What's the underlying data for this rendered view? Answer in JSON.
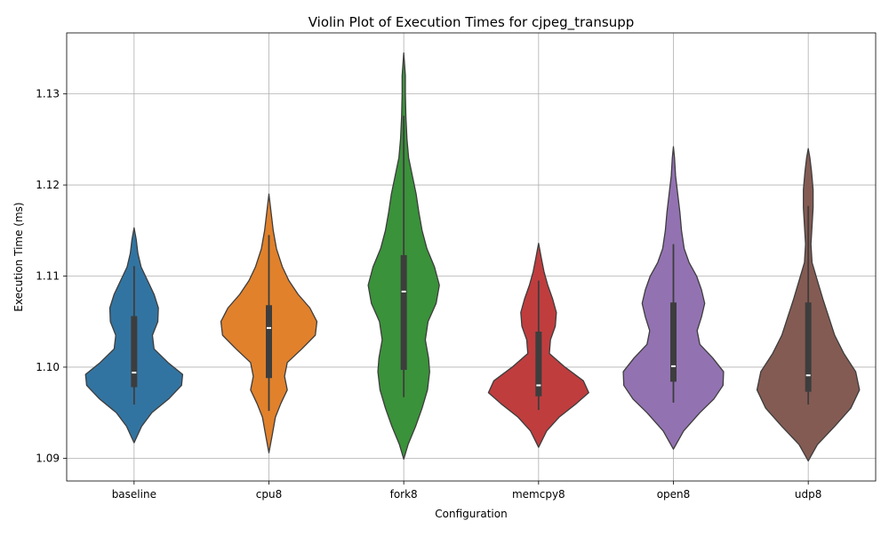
{
  "chart_data": {
    "type": "violin",
    "title": "Violin Plot of Execution Times for cjpeg_transupp",
    "xlabel": "Configuration",
    "ylabel": "Execution Time (ms)",
    "categories": [
      "baseline",
      "cpu8",
      "fork8",
      "memcpy8",
      "open8",
      "udp8"
    ],
    "ylim": [
      1.0875,
      1.1367
    ],
    "yticks": [
      "1.09",
      "1.10",
      "1.11",
      "1.12",
      "1.13"
    ],
    "ytick_values": [
      1.09,
      1.1,
      1.11,
      1.12,
      1.13
    ],
    "grid": true,
    "colors": [
      "#3274a1",
      "#e1812c",
      "#3a923a",
      "#c03d3e",
      "#9372b2",
      "#845b53"
    ],
    "series": [
      {
        "category": "baseline",
        "min": 1.0917,
        "max": 1.1153,
        "whisker_low": 1.0959,
        "q1": 1.0978,
        "median": 1.0994,
        "q3": 1.1056,
        "whisker_high": 1.1111,
        "density": [
          [
            1.0917,
            0.0
          ],
          [
            1.0935,
            0.14
          ],
          [
            1.095,
            0.33
          ],
          [
            1.0965,
            0.64
          ],
          [
            1.098,
            0.88
          ],
          [
            1.0992,
            0.9
          ],
          [
            1.1005,
            0.63
          ],
          [
            1.102,
            0.37
          ],
          [
            1.1035,
            0.34
          ],
          [
            1.105,
            0.44
          ],
          [
            1.1065,
            0.45
          ],
          [
            1.108,
            0.37
          ],
          [
            1.1095,
            0.25
          ],
          [
            1.111,
            0.13
          ],
          [
            1.1125,
            0.07
          ],
          [
            1.114,
            0.04
          ],
          [
            1.1153,
            0.0
          ]
        ]
      },
      {
        "category": "cpu8",
        "min": 1.0906,
        "max": 1.119,
        "whisker_low": 1.0952,
        "q1": 1.0988,
        "median": 1.1043,
        "q3": 1.1068,
        "whisker_high": 1.1145,
        "density": [
          [
            1.0906,
            0.0
          ],
          [
            1.0925,
            0.06
          ],
          [
            1.0945,
            0.12
          ],
          [
            1.096,
            0.22
          ],
          [
            1.0975,
            0.34
          ],
          [
            1.099,
            0.29
          ],
          [
            1.1005,
            0.34
          ],
          [
            1.102,
            0.61
          ],
          [
            1.1035,
            0.86
          ],
          [
            1.105,
            0.89
          ],
          [
            1.1065,
            0.76
          ],
          [
            1.108,
            0.54
          ],
          [
            1.1095,
            0.37
          ],
          [
            1.111,
            0.25
          ],
          [
            1.113,
            0.14
          ],
          [
            1.115,
            0.08
          ],
          [
            1.117,
            0.04
          ],
          [
            1.119,
            0.0
          ]
        ]
      },
      {
        "category": "fork8",
        "min": 1.0899,
        "max": 1.1345,
        "whisker_low": 1.0967,
        "q1": 1.0997,
        "median": 1.1083,
        "q3": 1.1123,
        "whisker_high": 1.1276,
        "density": [
          [
            1.0899,
            0.0
          ],
          [
            1.0915,
            0.08
          ],
          [
            1.0935,
            0.22
          ],
          [
            1.0955,
            0.34
          ],
          [
            1.0975,
            0.44
          ],
          [
            1.0995,
            0.48
          ],
          [
            1.101,
            0.46
          ],
          [
            1.103,
            0.4
          ],
          [
            1.105,
            0.45
          ],
          [
            1.107,
            0.6
          ],
          [
            1.109,
            0.66
          ],
          [
            1.111,
            0.57
          ],
          [
            1.113,
            0.43
          ],
          [
            1.115,
            0.34
          ],
          [
            1.117,
            0.28
          ],
          [
            1.119,
            0.23
          ],
          [
            1.121,
            0.16
          ],
          [
            1.123,
            0.09
          ],
          [
            1.125,
            0.06
          ],
          [
            1.1275,
            0.04
          ],
          [
            1.13,
            0.03
          ],
          [
            1.132,
            0.03
          ],
          [
            1.1345,
            0.0
          ]
        ]
      },
      {
        "category": "memcpy8",
        "min": 1.0912,
        "max": 1.1136,
        "whisker_low": 1.0953,
        "q1": 1.0968,
        "median": 1.098,
        "q3": 1.1039,
        "whisker_high": 1.1095,
        "density": [
          [
            1.0912,
            0.0
          ],
          [
            1.093,
            0.15
          ],
          [
            1.0945,
            0.38
          ],
          [
            1.096,
            0.7
          ],
          [
            1.0972,
            0.93
          ],
          [
            1.0985,
            0.83
          ],
          [
            1.1,
            0.49
          ],
          [
            1.1015,
            0.2
          ],
          [
            1.103,
            0.22
          ],
          [
            1.1045,
            0.31
          ],
          [
            1.106,
            0.33
          ],
          [
            1.1075,
            0.26
          ],
          [
            1.109,
            0.17
          ],
          [
            1.1105,
            0.1
          ],
          [
            1.112,
            0.05
          ],
          [
            1.1136,
            0.0
          ]
        ]
      },
      {
        "category": "open8",
        "min": 1.091,
        "max": 1.1242,
        "whisker_low": 1.0961,
        "q1": 1.0984,
        "median": 1.1001,
        "q3": 1.1071,
        "whisker_high": 1.1135,
        "density": [
          [
            1.091,
            0.0
          ],
          [
            1.093,
            0.19
          ],
          [
            1.095,
            0.49
          ],
          [
            1.0965,
            0.75
          ],
          [
            1.098,
            0.92
          ],
          [
            1.0995,
            0.93
          ],
          [
            1.101,
            0.73
          ],
          [
            1.1025,
            0.49
          ],
          [
            1.104,
            0.44
          ],
          [
            1.1055,
            0.52
          ],
          [
            1.107,
            0.58
          ],
          [
            1.1085,
            0.52
          ],
          [
            1.11,
            0.43
          ],
          [
            1.1115,
            0.29
          ],
          [
            1.113,
            0.2
          ],
          [
            1.115,
            0.15
          ],
          [
            1.117,
            0.12
          ],
          [
            1.119,
            0.08
          ],
          [
            1.121,
            0.04
          ],
          [
            1.123,
            0.02
          ],
          [
            1.1242,
            0.0
          ]
        ]
      },
      {
        "category": "udp8",
        "min": 1.0897,
        "max": 1.124,
        "whisker_low": 1.0959,
        "q1": 1.0973,
        "median": 1.0991,
        "q3": 1.1071,
        "whisker_high": 1.1177,
        "density": [
          [
            1.0897,
            0.0
          ],
          [
            1.0915,
            0.17
          ],
          [
            1.0935,
            0.49
          ],
          [
            1.0955,
            0.79
          ],
          [
            1.0975,
            0.95
          ],
          [
            1.0995,
            0.88
          ],
          [
            1.1015,
            0.66
          ],
          [
            1.1035,
            0.49
          ],
          [
            1.1055,
            0.38
          ],
          [
            1.1075,
            0.27
          ],
          [
            1.1095,
            0.17
          ],
          [
            1.1115,
            0.07
          ],
          [
            1.1135,
            0.05
          ],
          [
            1.1155,
            0.07
          ],
          [
            1.1175,
            0.09
          ],
          [
            1.1195,
            0.09
          ],
          [
            1.1215,
            0.06
          ],
          [
            1.123,
            0.03
          ],
          [
            1.124,
            0.0
          ]
        ]
      }
    ]
  }
}
